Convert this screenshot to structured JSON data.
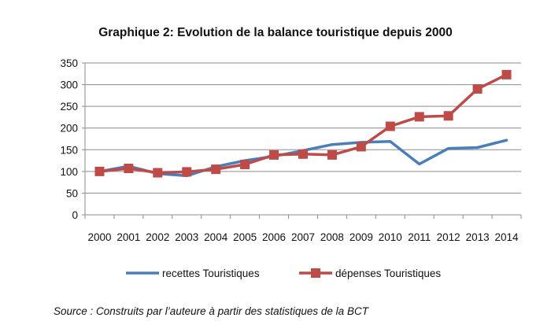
{
  "chart_data": {
    "type": "line",
    "title": "Graphique 2: Evolution de la balance touristique depuis 2000",
    "categories": [
      "2000",
      "2001",
      "2002",
      "2003",
      "2004",
      "2005",
      "2006",
      "2007",
      "2008",
      "2009",
      "2010",
      "2011",
      "2012",
      "2013",
      "2014"
    ],
    "series": [
      {
        "name": "recettes Touristiques",
        "color": "#4a7ebb",
        "marker": "none",
        "values": [
          100,
          112,
          95,
          90,
          111,
          125,
          135,
          148,
          162,
          167,
          169,
          117,
          153,
          155,
          172
        ]
      },
      {
        "name": "dépenses Touristiques",
        "color": "#be4b48",
        "marker": "square",
        "values": [
          100,
          107,
          97,
          99,
          105,
          116,
          138,
          140,
          138,
          157,
          204,
          226,
          228,
          290,
          323
        ]
      }
    ],
    "yticks": [
      "0",
      "50",
      "100",
      "150",
      "200",
      "250",
      "300",
      "350"
    ],
    "ylim": [
      0,
      350
    ],
    "grid": true,
    "legend_position": "bottom"
  },
  "source": "Source : Construits par l’auteure à partir des statistiques de la BCT"
}
